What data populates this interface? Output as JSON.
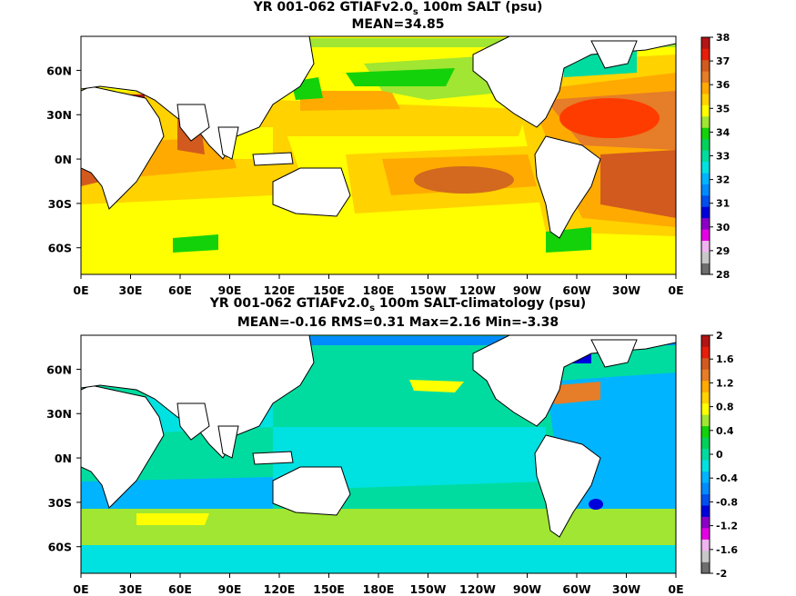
{
  "panels": [
    {
      "title_prefix": "YR 001-062 GTIAFv2.0",
      "title_sub": "s",
      "title_suffix": " 100m SALT (psu)",
      "stats": "MEAN=34.85"
    },
    {
      "title_prefix": "YR 001-062 GTIAFv2.0",
      "title_sub": "s",
      "title_suffix": " 100m SALT-climatology (psu)",
      "stats": "MEAN=-0.16   RMS=0.31   Max=2.16   Min=-3.38"
    }
  ],
  "chart_data": [
    {
      "type": "heatmap",
      "variable": "100m salinity",
      "units": "psu",
      "mean": 34.85,
      "x_ticks": [
        "0E",
        "30E",
        "60E",
        "90E",
        "120E",
        "150E",
        "180E",
        "150W",
        "120W",
        "90W",
        "60W",
        "30W",
        "0E"
      ],
      "y_ticks": [
        "60N",
        "30N",
        "0N",
        "30S",
        "60S"
      ],
      "y_tick_values": [
        60,
        30,
        0,
        -30,
        -60
      ],
      "colorbar_ticks": [
        "38",
        "37",
        "36",
        "35",
        "34",
        "33",
        "32",
        "31",
        "30",
        "29",
        "28"
      ],
      "colorbar_levels": [
        28,
        28.5,
        29,
        29.5,
        30,
        30.5,
        31,
        31.5,
        32,
        32.5,
        33,
        33.5,
        34,
        34.5,
        35,
        35.5,
        36,
        36.5,
        37,
        37.5,
        38
      ],
      "colorbar_colors": [
        "#6e6e6e",
        "#c8c8c8",
        "#f0b4f0",
        "#e600e6",
        "#8c00c8",
        "#0000dc",
        "#0050f0",
        "#008cff",
        "#00b4ff",
        "#00e1e1",
        "#00dca0",
        "#00d25a",
        "#14d20a",
        "#a0e632",
        "#ffff00",
        "#ffd200",
        "#ffaa00",
        "#e67d28",
        "#d25a1e",
        "#e61e0a",
        "#b41414"
      ]
    },
    {
      "type": "heatmap",
      "variable": "100m salinity minus climatology",
      "units": "psu",
      "mean": -0.16,
      "rms": 0.31,
      "max": 2.16,
      "min": -3.38,
      "x_ticks": [
        "0E",
        "30E",
        "60E",
        "90E",
        "120E",
        "150E",
        "180E",
        "150W",
        "120W",
        "90W",
        "60W",
        "30W",
        "0E"
      ],
      "y_ticks": [
        "60N",
        "30N",
        "0N",
        "30S",
        "60S"
      ],
      "y_tick_values": [
        60,
        30,
        0,
        -30,
        -60
      ],
      "colorbar_ticks": [
        "2",
        "1.6",
        "1.2",
        "0.8",
        "0.4",
        "0",
        "-0.4",
        "-0.8",
        "-1.2",
        "-1.6",
        "-2"
      ],
      "colorbar_levels": [
        -2,
        -1.8,
        -1.6,
        -1.4,
        -1.2,
        -1,
        -0.8,
        -0.6,
        -0.4,
        -0.2,
        0,
        0.2,
        0.4,
        0.6,
        0.8,
        1,
        1.2,
        1.4,
        1.6,
        1.8,
        2
      ],
      "colorbar_colors": [
        "#6e6e6e",
        "#c8c8c8",
        "#f0b4f0",
        "#e600e6",
        "#8c00c8",
        "#0000dc",
        "#0050f0",
        "#008cff",
        "#00b4ff",
        "#00e1e1",
        "#00dca0",
        "#00d25a",
        "#14d20a",
        "#a0e632",
        "#ffff00",
        "#ffd200",
        "#ffaa00",
        "#e67d28",
        "#d25a1e",
        "#e61e0a",
        "#b41414"
      ]
    }
  ]
}
